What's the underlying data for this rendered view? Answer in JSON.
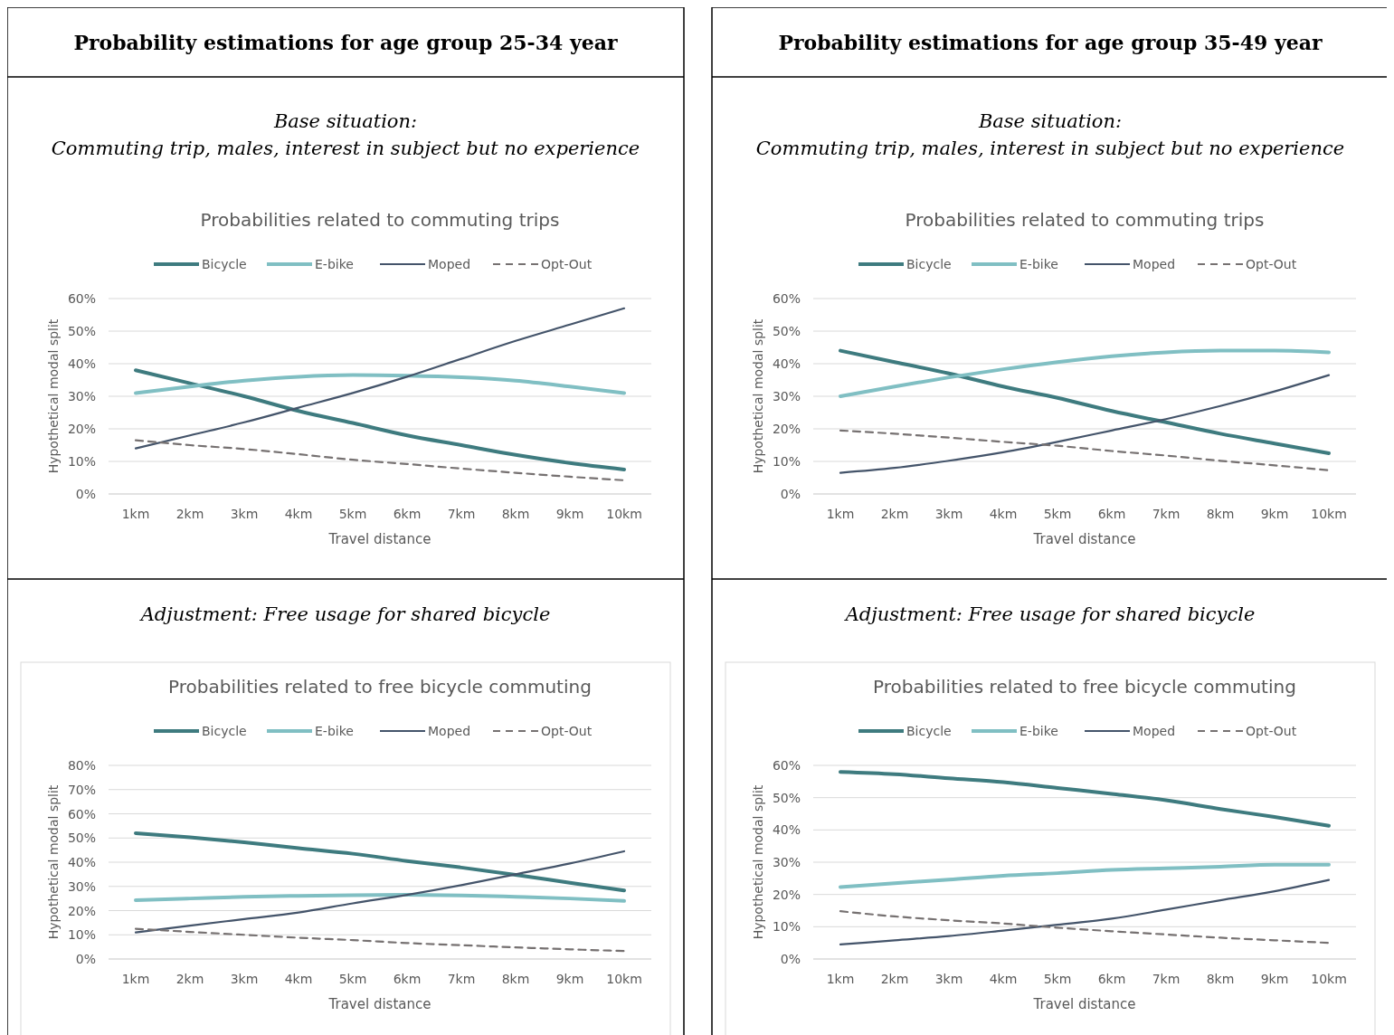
{
  "chart_data": [
    {
      "type": "line",
      "title": "Probabilities related to commuting trips",
      "subtitle": "Base situation:\nCommuting trip, males, interest in subject but no experience",
      "annotations": [
        "Probability estimations for age group 25-34 year"
      ],
      "xlabel": "Travel distance",
      "ylabel": "Hypothetical modal split",
      "categories": [
        "1km",
        "2km",
        "3km",
        "4km",
        "5km",
        "6km",
        "7km",
        "8km",
        "9km",
        "10km"
      ],
      "ylim": [
        0,
        60
      ],
      "yticks": [
        {
          "value": 0,
          "label": "0%"
        },
        {
          "value": 10,
          "label": "10%"
        },
        {
          "value": 20,
          "label": "20%"
        },
        {
          "value": 30,
          "label": "30%"
        },
        {
          "value": 40,
          "label": "40%"
        },
        {
          "value": 50,
          "label": "50%"
        },
        {
          "value": 60,
          "label": "60%"
        }
      ],
      "grid": "y",
      "legend": "top",
      "series": [
        {
          "name": "Bicycle",
          "color": "#3e7b7f",
          "line_style": "solid",
          "values": [
            38,
            34,
            30,
            25.5,
            21.8,
            18,
            15,
            12,
            9.5,
            7.5
          ]
        },
        {
          "name": "E-bike",
          "color": "#80bfc3",
          "line_style": "solid",
          "values": [
            31,
            33,
            34.8,
            36,
            36.5,
            36.3,
            35.8,
            34.8,
            33,
            31
          ]
        },
        {
          "name": "Moped",
          "color": "#44546a",
          "line_style": "solid",
          "values": [
            14,
            18,
            22,
            26.5,
            31,
            36,
            41.5,
            47,
            52,
            57
          ]
        },
        {
          "name": "Opt-Out",
          "color": "#767171",
          "line_style": "dashed",
          "values": [
            16.5,
            15,
            13.8,
            12.2,
            10.5,
            9.2,
            7.8,
            6.5,
            5.3,
            4.2
          ]
        }
      ]
    },
    {
      "type": "line",
      "title": "Probabilities related to commuting trips",
      "subtitle": "Base situation:\nCommuting trip, males, interest in subject but no experience",
      "annotations": [
        "Probability estimations for age group 35-49 year"
      ],
      "xlabel": "Travel distance",
      "ylabel": "Hypothetical modal split",
      "categories": [
        "1km",
        "2km",
        "3km",
        "4km",
        "5km",
        "6km",
        "7km",
        "8km",
        "9km",
        "10km"
      ],
      "ylim": [
        0,
        60
      ],
      "yticks": [
        {
          "value": 0,
          "label": "0%"
        },
        {
          "value": 10,
          "label": "10%"
        },
        {
          "value": 20,
          "label": "20%"
        },
        {
          "value": 30,
          "label": "30%"
        },
        {
          "value": 40,
          "label": "40%"
        },
        {
          "value": 50,
          "label": "50%"
        },
        {
          "value": 60,
          "label": "60%"
        }
      ],
      "grid": "y",
      "legend": "top",
      "series": [
        {
          "name": "Bicycle",
          "color": "#3e7b7f",
          "line_style": "solid",
          "values": [
            44,
            40.5,
            37,
            33,
            29.5,
            25.5,
            22,
            18.5,
            15.5,
            12.5
          ]
        },
        {
          "name": "E-bike",
          "color": "#80bfc3",
          "line_style": "solid",
          "values": [
            30,
            33,
            35.8,
            38.3,
            40.5,
            42.3,
            43.5,
            44,
            44,
            43.5
          ]
        },
        {
          "name": "Moped",
          "color": "#44546a",
          "line_style": "solid",
          "values": [
            6.5,
            8,
            10.2,
            12.8,
            16,
            19.5,
            23,
            27,
            31.5,
            36.5
          ]
        },
        {
          "name": "Opt-Out",
          "color": "#767171",
          "line_style": "dashed",
          "values": [
            19.5,
            18.5,
            17.3,
            16,
            14.8,
            13.2,
            11.8,
            10.2,
            8.8,
            7.3
          ]
        }
      ]
    },
    {
      "type": "line",
      "title": "Probabilities related to free bicycle commuting",
      "subtitle": "Adjustment: Free usage for shared bicycle",
      "xlabel": "Travel distance",
      "ylabel": "Hypothetical modal split",
      "categories": [
        "1km",
        "2km",
        "3km",
        "4km",
        "5km",
        "6km",
        "7km",
        "8km",
        "9km",
        "10km"
      ],
      "ylim": [
        0,
        80
      ],
      "yticks": [
        {
          "value": 0,
          "label": "0%"
        },
        {
          "value": 10,
          "label": "10%"
        },
        {
          "value": 20,
          "label": "20%"
        },
        {
          "value": 30,
          "label": "30%"
        },
        {
          "value": 40,
          "label": "40%"
        },
        {
          "value": 50,
          "label": "50%"
        },
        {
          "value": 60,
          "label": "60%"
        },
        {
          "value": 70,
          "label": "70%"
        },
        {
          "value": 80,
          "label": "80%"
        }
      ],
      "grid": "y",
      "legend": "top",
      "series": [
        {
          "name": "Bicycle",
          "color": "#3e7b7f",
          "line_style": "solid",
          "values": [
            52,
            50.3,
            48.2,
            45.8,
            43.5,
            40.5,
            37.8,
            34.8,
            31.5,
            28.3
          ]
        },
        {
          "name": "E-bike",
          "color": "#80bfc3",
          "line_style": "solid",
          "values": [
            24.3,
            25,
            25.7,
            26.1,
            26.4,
            26.5,
            26.3,
            25.7,
            25,
            24
          ]
        },
        {
          "name": "Moped",
          "color": "#44546a",
          "line_style": "solid",
          "values": [
            11,
            13.8,
            16.5,
            19.2,
            23,
            26.5,
            30.5,
            35,
            39.5,
            44.5
          ]
        },
        {
          "name": "Opt-Out",
          "color": "#767171",
          "line_style": "dashed",
          "values": [
            12.5,
            11.2,
            10,
            8.8,
            7.8,
            6.6,
            5.7,
            4.8,
            4,
            3.3
          ]
        }
      ]
    },
    {
      "type": "line",
      "title": "Probabilities related to free bicycle commuting",
      "subtitle": "Adjustment: Free usage for shared bicycle",
      "xlabel": "Travel distance",
      "ylabel": "Hypothetical modal split",
      "categories": [
        "1km",
        "2km",
        "3km",
        "4km",
        "5km",
        "6km",
        "7km",
        "8km",
        "9km",
        "10km"
      ],
      "ylim": [
        0,
        60
      ],
      "yticks": [
        {
          "value": 0,
          "label": "0%"
        },
        {
          "value": 10,
          "label": "10%"
        },
        {
          "value": 20,
          "label": "20%"
        },
        {
          "value": 30,
          "label": "30%"
        },
        {
          "value": 40,
          "label": "40%"
        },
        {
          "value": 50,
          "label": "50%"
        },
        {
          "value": 60,
          "label": "60%"
        }
      ],
      "grid": "y",
      "legend": "top",
      "series": [
        {
          "name": "Bicycle",
          "color": "#3e7b7f",
          "line_style": "solid",
          "values": [
            58,
            57.3,
            56,
            54.8,
            53,
            51.2,
            49.2,
            46.5,
            44,
            41.3
          ]
        },
        {
          "name": "E-bike",
          "color": "#80bfc3",
          "line_style": "solid",
          "values": [
            22.3,
            23.5,
            24.6,
            25.8,
            26.6,
            27.6,
            28.1,
            28.6,
            29.2,
            29.2
          ]
        },
        {
          "name": "Moped",
          "color": "#44546a",
          "line_style": "solid",
          "values": [
            4.5,
            5.8,
            7.1,
            8.8,
            10.6,
            12.5,
            15.3,
            18.2,
            21,
            24.5
          ]
        },
        {
          "name": "Opt-Out",
          "color": "#767171",
          "line_style": "dashed",
          "values": [
            14.8,
            13.2,
            12,
            11,
            9.7,
            8.6,
            7.6,
            6.6,
            5.8,
            5.0
          ]
        }
      ]
    }
  ]
}
